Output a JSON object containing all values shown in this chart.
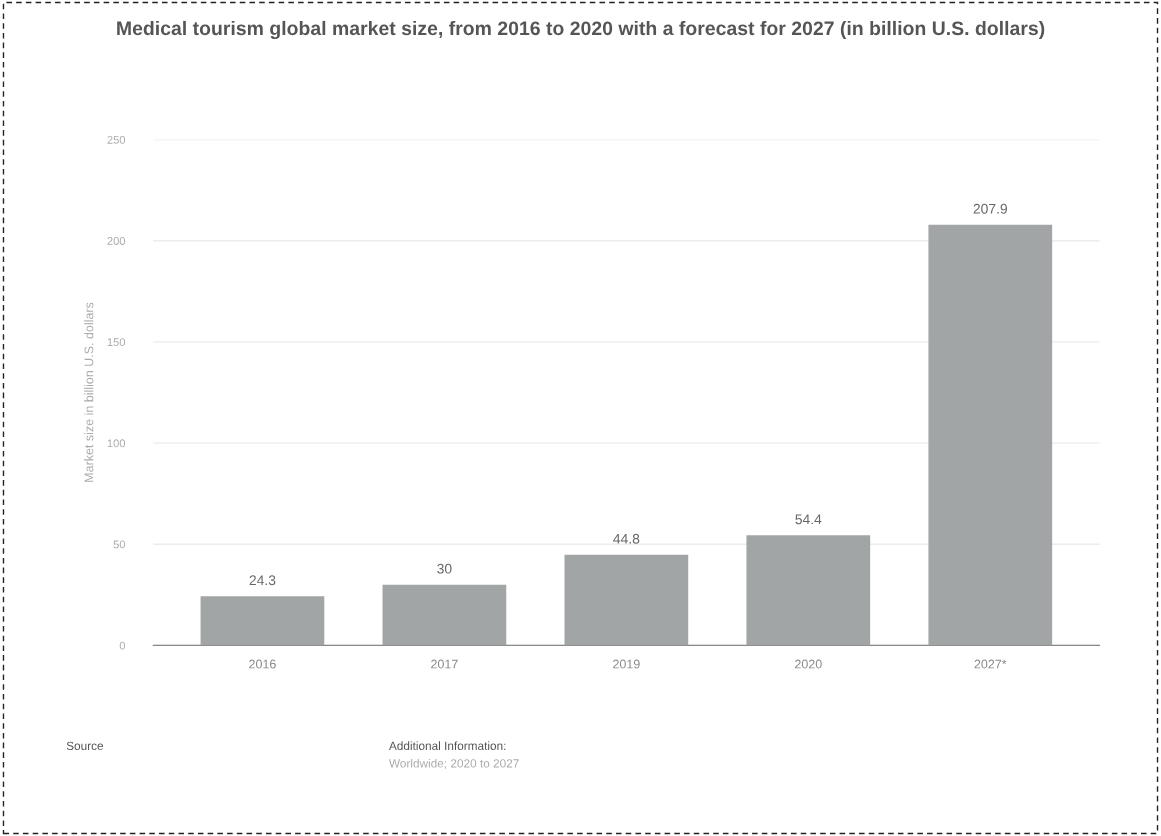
{
  "chart_data": {
    "type": "bar",
    "title": "Medical tourism global market size, from 2016 to 2020 with a forecast for 2027 (in billion U.S. dollars)",
    "ylabel": "Market size in billion U.S. dollars",
    "categories": [
      "2016",
      "2017",
      "2019",
      "2020",
      "2027*"
    ],
    "values": [
      24.3,
      30,
      44.8,
      54.4,
      207.9
    ],
    "color": "#a2a5a6",
    "ylim": [
      0,
      250
    ],
    "yticks": [
      0,
      50,
      100,
      150,
      200,
      250
    ],
    "grid": "y",
    "data_labels": true,
    "annotations": [
      "Source",
      "Additional Information:",
      "Worldwide; 2020 to 2027"
    ]
  }
}
